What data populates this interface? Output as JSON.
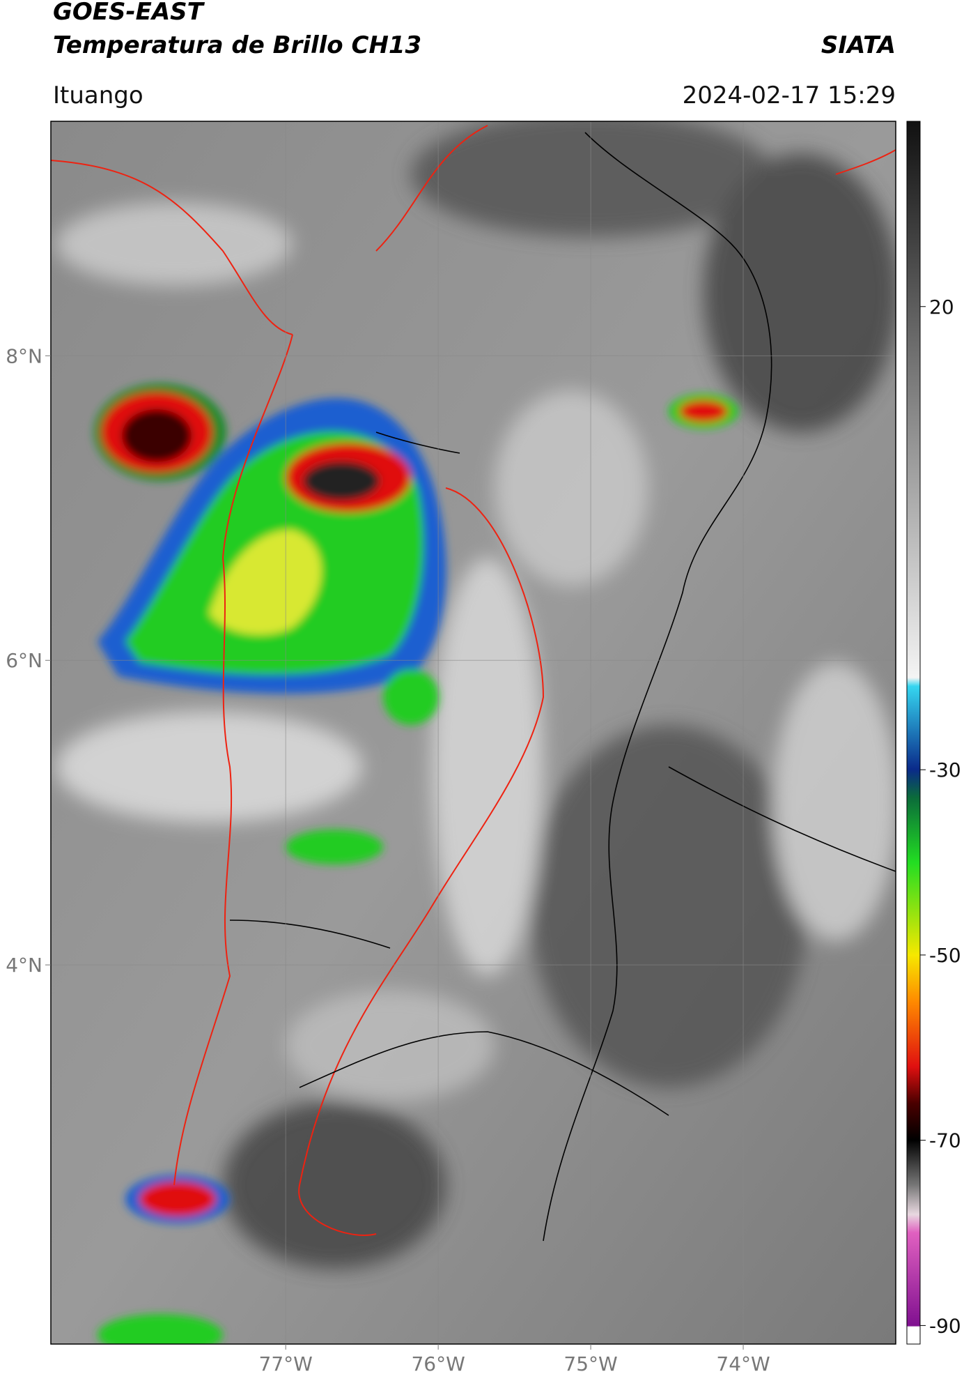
{
  "header": {
    "title": "GOES-EAST",
    "subtitle": "Temperatura de Brillo CH13",
    "source": "SIATA",
    "location": "Ituango",
    "datetime": "2024-02-17 15:29"
  },
  "map": {
    "lonlim": [
      -78.54,
      -73.0
    ],
    "latlim": [
      1.51,
      9.54
    ],
    "xticks": [
      {
        "value": -77,
        "label": "77°W"
      },
      {
        "value": -76,
        "label": "76°W"
      },
      {
        "value": -75,
        "label": "75°W"
      },
      {
        "value": -74,
        "label": "74°W"
      }
    ],
    "yticks": [
      {
        "value": 4,
        "label": "4°N"
      },
      {
        "value": 6,
        "label": "6°N"
      },
      {
        "value": 8,
        "label": "8°N"
      }
    ],
    "grid": true
  },
  "colorbar": {
    "lim": [
      -92,
      40
    ],
    "ticks": [
      20,
      -30,
      -50,
      -70,
      -90
    ]
  }
}
